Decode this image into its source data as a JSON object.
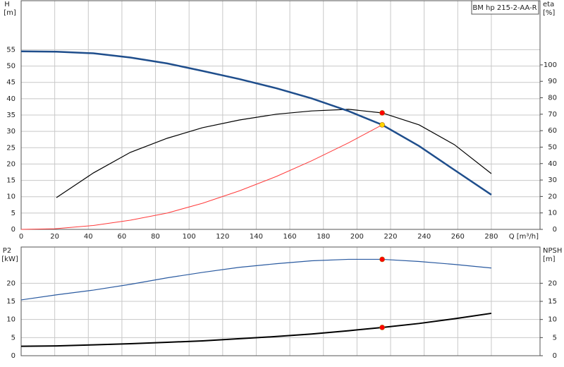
{
  "chart_data": [
    {
      "type": "line",
      "title": "BM hp 215-2-AA-R",
      "ylabel": "H",
      "yunit": "[m]",
      "y2label": "eta",
      "y2unit": "[%]",
      "xlabel": "Q [m³/h]",
      "xlim": [
        0,
        309
      ],
      "xticks": [
        0,
        20,
        40,
        60,
        80,
        100,
        120,
        140,
        160,
        180,
        200,
        220,
        240,
        260,
        280
      ],
      "ylim": [
        0,
        70
      ],
      "yticks": [
        0,
        5,
        10,
        15,
        20,
        25,
        30,
        35,
        40,
        45,
        50,
        55
      ],
      "y2lim": [
        0,
        139
      ],
      "y2ticks": [
        0,
        10,
        20,
        30,
        40,
        50,
        60,
        70,
        80,
        90,
        100
      ],
      "grid": true,
      "series": [
        {
          "color": "#ff3b3b",
          "width": 1,
          "x": [
            0,
            20,
            43,
            65,
            87,
            108,
            130,
            152,
            173,
            195,
            215
          ],
          "values": [
            0,
            0.2,
            1.2,
            2.8,
            5,
            8,
            11.8,
            16.2,
            21,
            26.5,
            32
          ]
        },
        {
          "color": "#000000",
          "width": 1.2,
          "axis": "y2",
          "x": [
            21,
            43,
            65,
            87,
            108,
            130,
            152,
            173,
            195,
            215,
            237,
            258,
            280
          ],
          "values": [
            19.3,
            34.3,
            46.8,
            55.4,
            61.8,
            66.5,
            70,
            72,
            73,
            70.8,
            63.5,
            51.5,
            33.9
          ]
        },
        {
          "color": "#1f4e8c",
          "width": 2.5,
          "x": [
            0,
            21,
            43,
            65,
            87,
            108,
            130,
            152,
            173,
            195,
            215,
            237,
            258,
            280
          ],
          "values": [
            54.5,
            54.4,
            53.9,
            52.6,
            50.8,
            48.5,
            46,
            43.2,
            40.1,
            36.2,
            32,
            25.5,
            18.2,
            10.6
          ]
        },
        {
          "color": "#ff0000",
          "marker": true,
          "axis": "y2",
          "x": [
            215
          ],
          "values": [
            70.8
          ]
        },
        {
          "color": "#ffd700",
          "marker": true,
          "x": [
            215
          ],
          "values": [
            32
          ]
        }
      ]
    },
    {
      "type": "line",
      "ylabel": "P2",
      "yunit": "[kW]",
      "y2label": "NPSH",
      "y2unit": "[m]",
      "xlim": [
        0,
        309
      ],
      "xticks": [
        0,
        20,
        40,
        60,
        80,
        100,
        120,
        140,
        160,
        180,
        200,
        220,
        240,
        260,
        280
      ],
      "ylim": [
        0,
        30
      ],
      "yticks": [
        0,
        5,
        10,
        15,
        20
      ],
      "y2lim": [
        0,
        30
      ],
      "y2ticks": [
        0,
        5,
        10,
        15,
        20
      ],
      "grid": true,
      "series": [
        {
          "color": "#2a5aa0",
          "width": 1.2,
          "x": [
            0,
            21,
            43,
            65,
            87,
            108,
            130,
            152,
            173,
            195,
            215,
            237,
            258,
            280
          ],
          "values": [
            15.4,
            16.8,
            18.1,
            19.7,
            21.5,
            23,
            24.4,
            25.4,
            26.2,
            26.6,
            26.6,
            26,
            25.2,
            24.2
          ]
        },
        {
          "color": "#000000",
          "width": 2,
          "axis": "y2",
          "x": [
            0,
            21,
            43,
            65,
            87,
            108,
            130,
            152,
            173,
            195,
            215,
            237,
            258,
            280
          ],
          "values": [
            2.6,
            2.7,
            3,
            3.3,
            3.7,
            4.1,
            4.7,
            5.3,
            6,
            6.9,
            7.8,
            8.9,
            10.2,
            11.7
          ]
        },
        {
          "color": "#ff0000",
          "marker": true,
          "x": [
            215
          ],
          "values": [
            26.6
          ]
        },
        {
          "color": "#ff0000",
          "marker": true,
          "axis": "y2",
          "x": [
            215
          ],
          "values": [
            7.8
          ]
        }
      ]
    }
  ]
}
